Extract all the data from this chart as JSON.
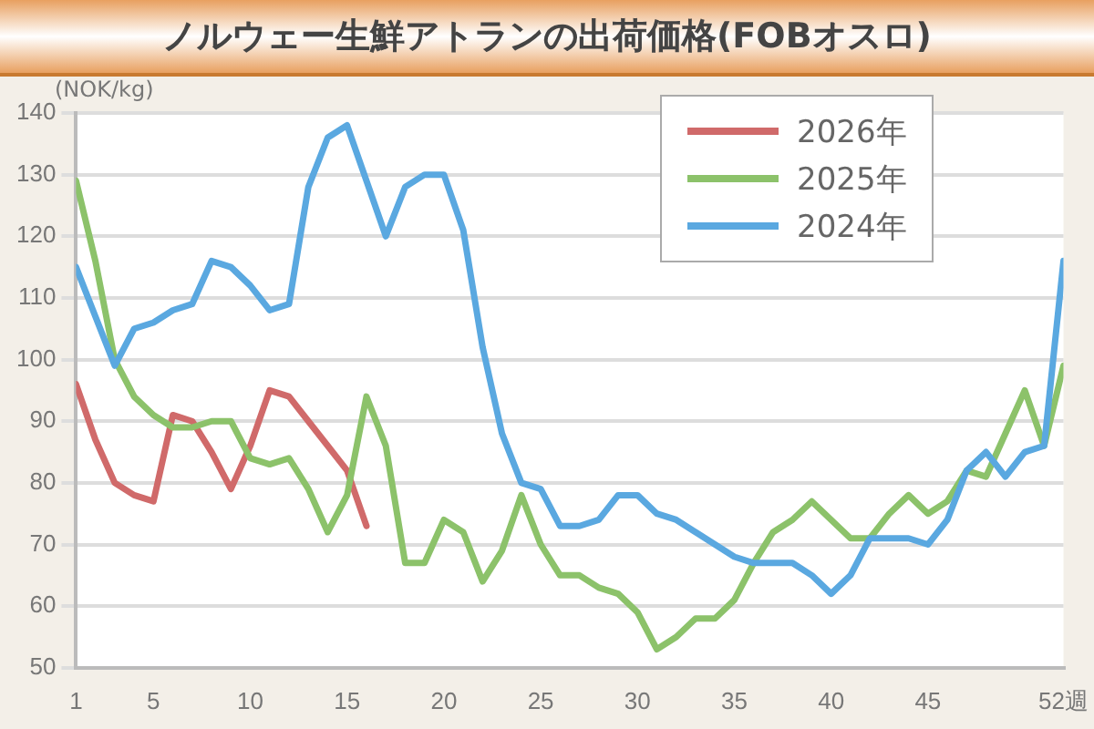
{
  "chart_data": {
    "type": "line",
    "title": "ノルウェー生鮮アトランの出荷価格(FOBオスロ)",
    "ylabel": "(NOK/kg)",
    "x": [
      1,
      2,
      3,
      4,
      5,
      6,
      7,
      8,
      9,
      10,
      11,
      12,
      13,
      14,
      15,
      16,
      17,
      18,
      19,
      20,
      21,
      22,
      23,
      24,
      25,
      26,
      27,
      28,
      29,
      30,
      31,
      32,
      33,
      34,
      35,
      36,
      37,
      38,
      39,
      40,
      41,
      42,
      43,
      44,
      45,
      46,
      47,
      48,
      49,
      50,
      51,
      52
    ],
    "series": [
      {
        "name": "2026年",
        "color": "#d06a6a",
        "x": [
          1,
          2,
          3,
          4,
          5,
          6,
          7,
          8,
          9,
          10,
          11,
          12,
          13,
          14,
          15,
          16
        ],
        "values": [
          96,
          87,
          80,
          78,
          77,
          91,
          90,
          85,
          79,
          86,
          95,
          94,
          90,
          86,
          82,
          73
        ]
      },
      {
        "name": "2025年",
        "color": "#8cc26a",
        "values": [
          129,
          116,
          100,
          94,
          91,
          89,
          89,
          90,
          90,
          84,
          83,
          84,
          79,
          72,
          78,
          94,
          86,
          67,
          67,
          74,
          72,
          64,
          69,
          78,
          70,
          65,
          65,
          63,
          62,
          59,
          53,
          55,
          58,
          58,
          61,
          67,
          72,
          74,
          77,
          74,
          71,
          71,
          75,
          78,
          75,
          77,
          82,
          81,
          88,
          95,
          86,
          99
        ]
      },
      {
        "name": "2024年",
        "color": "#5aa8e0",
        "values": [
          115,
          107,
          99,
          105,
          106,
          108,
          109,
          116,
          115,
          112,
          108,
          109,
          128,
          136,
          138,
          129,
          120,
          128,
          130,
          130,
          121,
          102,
          88,
          80,
          79,
          73,
          73,
          74,
          78,
          78,
          75,
          74,
          72,
          70,
          68,
          67,
          67,
          67,
          65,
          62,
          65,
          71,
          71,
          71,
          70,
          74,
          82,
          85,
          81,
          85,
          86,
          116
        ]
      }
    ],
    "xlim": [
      1,
      52
    ],
    "xticks": [
      1,
      5,
      10,
      15,
      20,
      25,
      30,
      35,
      40,
      45,
      {
        "value": 52,
        "label": "52週"
      }
    ],
    "ylim": [
      50,
      140
    ],
    "yticks": [
      50,
      60,
      70,
      80,
      90,
      100,
      110,
      120,
      130,
      140
    ],
    "grid": "y",
    "legend": "top right",
    "marker": "none",
    "line_style": "solid"
  }
}
